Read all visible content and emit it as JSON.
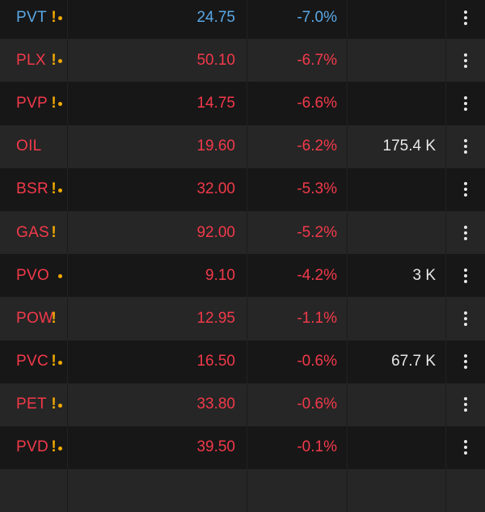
{
  "colors": {
    "down": "#f2394a",
    "reference": "#5aa8e6",
    "flag": "#f2a900",
    "text": "#e8e8e8"
  },
  "rows": [
    {
      "symbol": "PVT",
      "price": "24.75",
      "change": "-7.0%",
      "volume": "",
      "flag_excl": true,
      "flag_dot": true,
      "tone": "reference"
    },
    {
      "symbol": "PLX",
      "price": "50.10",
      "change": "-6.7%",
      "volume": "",
      "flag_excl": true,
      "flag_dot": true,
      "tone": "down"
    },
    {
      "symbol": "PVP",
      "price": "14.75",
      "change": "-6.6%",
      "volume": "",
      "flag_excl": true,
      "flag_dot": true,
      "tone": "down"
    },
    {
      "symbol": "OIL",
      "price": "19.60",
      "change": "-6.2%",
      "volume": "175.4 K",
      "flag_excl": false,
      "flag_dot": false,
      "tone": "down"
    },
    {
      "symbol": "BSR",
      "price": "32.00",
      "change": "-5.3%",
      "volume": "",
      "flag_excl": true,
      "flag_dot": true,
      "tone": "down"
    },
    {
      "symbol": "GAS",
      "price": "92.00",
      "change": "-5.2%",
      "volume": "",
      "flag_excl": true,
      "flag_dot": false,
      "tone": "down"
    },
    {
      "symbol": "PVO",
      "price": "9.10",
      "change": "-4.2%",
      "volume": "3 K",
      "flag_excl": false,
      "flag_dot": true,
      "tone": "down"
    },
    {
      "symbol": "POW",
      "price": "12.95",
      "change": "-1.1%",
      "volume": "",
      "flag_excl": true,
      "flag_dot": false,
      "tone": "down"
    },
    {
      "symbol": "PVC",
      "price": "16.50",
      "change": "-0.6%",
      "volume": "67.7 K",
      "flag_excl": true,
      "flag_dot": true,
      "tone": "down"
    },
    {
      "symbol": "PET",
      "price": "33.80",
      "change": "-0.6%",
      "volume": "",
      "flag_excl": true,
      "flag_dot": true,
      "tone": "down"
    },
    {
      "symbol": "PVD",
      "price": "39.50",
      "change": "-0.1%",
      "volume": "",
      "flag_excl": true,
      "flag_dot": true,
      "tone": "down"
    },
    {
      "symbol": "",
      "price": "",
      "change": "",
      "volume": "",
      "flag_excl": false,
      "flag_dot": false,
      "tone": "down"
    }
  ]
}
